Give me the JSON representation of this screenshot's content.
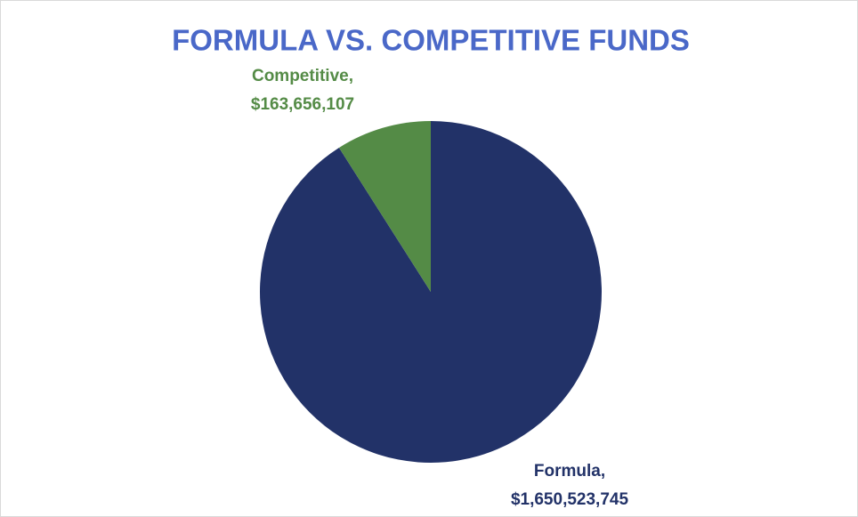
{
  "chart_data": {
    "type": "pie",
    "title": "FORMULA VS. COMPETITIVE FUNDS",
    "categories": [
      "Formula,",
      "Competitive,"
    ],
    "values": [
      1650523745,
      163656107
    ],
    "value_labels": [
      "$1,650,523,745",
      "$163,656,107"
    ],
    "colors": [
      "#223268",
      "#548b46"
    ]
  }
}
